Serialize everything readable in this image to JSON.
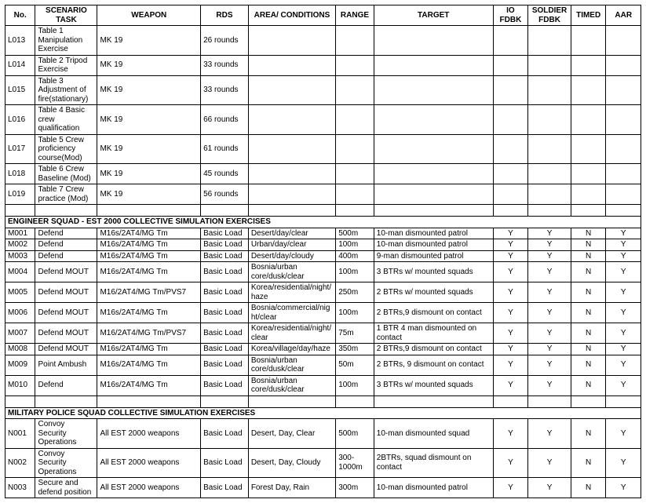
{
  "columns": [
    "No.",
    "SCENARIO TASK",
    "WEAPON",
    "RDS",
    "AREA/ CONDITIONS",
    "RANGE",
    "TARGET",
    "IO FDBK",
    "SOLDIER FDBK",
    "TIMED",
    "AAR"
  ],
  "rows": [
    {
      "no": "L013",
      "task": "Table 1 Manipulation Exercise",
      "weapon": "MK 19",
      "rds": "26 rounds",
      "area": "",
      "range": "",
      "target": "",
      "io": "",
      "sldr": "",
      "timed": "",
      "aar": ""
    },
    {
      "no": "L014",
      "task": "Table 2 Tripod Exercise",
      "weapon": "MK 19",
      "rds": "33 rounds",
      "area": "",
      "range": "",
      "target": "",
      "io": "",
      "sldr": "",
      "timed": "",
      "aar": ""
    },
    {
      "no": "L015",
      "task": "Table 3 Adjustment of fire(stationary)",
      "weapon": "MK 19",
      "rds": "33 rounds",
      "area": "",
      "range": "",
      "target": "",
      "io": "",
      "sldr": "",
      "timed": "",
      "aar": ""
    },
    {
      "no": "L016",
      "task": "Table 4 Basic crew qualification",
      "weapon": "MK 19",
      "rds": "66 rounds",
      "area": "",
      "range": "",
      "target": "",
      "io": "",
      "sldr": "",
      "timed": "",
      "aar": ""
    },
    {
      "no": "L017",
      "task": "Table 5 Crew proficiency course(Mod)",
      "weapon": "MK 19",
      "rds": "61 rounds",
      "area": "",
      "range": "",
      "target": "",
      "io": "",
      "sldr": "",
      "timed": "",
      "aar": ""
    },
    {
      "no": "L018",
      "task": "Table 6 Crew Baseline (Mod)",
      "weapon": "MK 19",
      "rds": "45 rounds",
      "area": "",
      "range": "",
      "target": "",
      "io": "",
      "sldr": "",
      "timed": "",
      "aar": ""
    },
    {
      "no": "L019",
      "task": "Table 7 Crew practice (Mod)",
      "weapon": "MK 19",
      "rds": "56 rounds",
      "area": "",
      "range": "",
      "target": "",
      "io": "",
      "sldr": "",
      "timed": "",
      "aar": ""
    },
    {
      "type": "empty"
    },
    {
      "type": "section",
      "label": "ENGINEER SQUAD - EST 2000 COLLECTIVE SIMULATION EXERCISES"
    },
    {
      "no": "M001",
      "task": "Defend",
      "weapon": "M16s/2AT4/MG Tm",
      "rds": "Basic Load",
      "area": "Desert/day/clear",
      "range": "500m",
      "target": "10-man dismounted patrol",
      "io": "Y",
      "sldr": "Y",
      "timed": "N",
      "aar": "Y"
    },
    {
      "no": "M002",
      "task": "Defend",
      "weapon": "M16s/2AT4/MG Tm",
      "rds": "Basic Load",
      "area": "Urban/day/clear",
      "range": "100m",
      "target": "10-man dismounted patrol",
      "io": "Y",
      "sldr": "Y",
      "timed": "N",
      "aar": "Y"
    },
    {
      "no": "M003",
      "task": "Defend",
      "weapon": "M16s/2AT4/MG Tm",
      "rds": "Basic Load",
      "area": "Desert/day/cloudy",
      "range": "400m",
      "target": "9-man dismounted patrol",
      "io": "Y",
      "sldr": "Y",
      "timed": "N",
      "aar": "Y"
    },
    {
      "no": "M004",
      "task": "Defend MOUT",
      "weapon": "M16s/2AT4/MG Tm",
      "rds": "Basic Load",
      "area": "Bosnia/urban core/dusk/clear",
      "range": "100m",
      "target": "3 BTRs w/ mounted squads",
      "io": "Y",
      "sldr": "Y",
      "timed": "N",
      "aar": "Y"
    },
    {
      "no": "M005",
      "task": "Defend MOUT",
      "weapon": "M16/2AT4/MG Tm/PVS7",
      "rds": "Basic Load",
      "area": "Korea/residential/night/haze",
      "range": "250m",
      "target": "2 BTRs w/ mounted squads",
      "io": "Y",
      "sldr": "Y",
      "timed": "N",
      "aar": "Y"
    },
    {
      "no": "M006",
      "task": "Defend MOUT",
      "weapon": "M16s/2AT4/MG Tm",
      "rds": "Basic Load",
      "area": "Bosnia/commercial/night/clear",
      "range": "100m",
      "target": "2 BTRs,9 dismount on contact",
      "io": "Y",
      "sldr": "Y",
      "timed": "N",
      "aar": "Y"
    },
    {
      "no": "M007",
      "task": "Defend MOUT",
      "weapon": "M16/2AT4/MG Tm/PVS7",
      "rds": "Basic Load",
      "area": "Korea/residential/night/clear",
      "range": "75m",
      "target": "1 BTR 4 man dismounted on contact",
      "io": "Y",
      "sldr": "Y",
      "timed": "N",
      "aar": "Y"
    },
    {
      "no": "M008",
      "task": "Defend MOUT",
      "weapon": "M16s/2AT4/MG Tm",
      "rds": "Basic Load",
      "area": "Korea/village/day/haze",
      "range": "350m",
      "target": "2 BTRs,9 dismount on contact",
      "io": "Y",
      "sldr": "Y",
      "timed": "N",
      "aar": "Y"
    },
    {
      "no": "M009",
      "task": "Point Ambush",
      "weapon": "M16s/2AT4/MG Tm",
      "rds": "Basic Load",
      "area": "Bosnia/urban core/dusk/clear",
      "range": "50m",
      "target": "2 BTRs, 9 dismount on contact",
      "io": "Y",
      "sldr": "Y",
      "timed": "N",
      "aar": "Y"
    },
    {
      "no": "M010",
      "task": "Defend",
      "weapon": "M16s/2AT4/MG Tm",
      "rds": "Basic Load",
      "area": "Bosnia/urban core/dusk/clear",
      "range": "100m",
      "target": "3 BTRs w/ mounted squads",
      "io": "Y",
      "sldr": "Y",
      "timed": "N",
      "aar": "Y"
    },
    {
      "type": "empty"
    },
    {
      "type": "section",
      "label": "MILITARY POLICE SQUAD COLLECTIVE SIMULATION EXERCISES"
    },
    {
      "no": "N001",
      "task": "Convoy Security Operations",
      "weapon": "All EST 2000 weapons",
      "rds": "Basic Load",
      "area": "Desert, Day, Clear",
      "range": "500m",
      "target": "10-man dismounted squad",
      "io": "Y",
      "sldr": "Y",
      "timed": "N",
      "aar": "Y"
    },
    {
      "no": "N002",
      "task": "Convoy Security Operations",
      "weapon": "All EST 2000 weapons",
      "rds": "Basic Load",
      "area": "Desert, Day, Cloudy",
      "range": "300-1000m",
      "target": "2BTRs, squad dismount on contact",
      "io": "Y",
      "sldr": "Y",
      "timed": "N",
      "aar": "Y"
    },
    {
      "no": "N003",
      "task": "Secure and defend position",
      "weapon": "All EST 2000 weapons",
      "rds": "Basic Load",
      "area": "Forest Day, Rain",
      "range": "300m",
      "target": "10-man dismounted patrol",
      "io": "Y",
      "sldr": "Y",
      "timed": "N",
      "aar": "Y"
    }
  ]
}
